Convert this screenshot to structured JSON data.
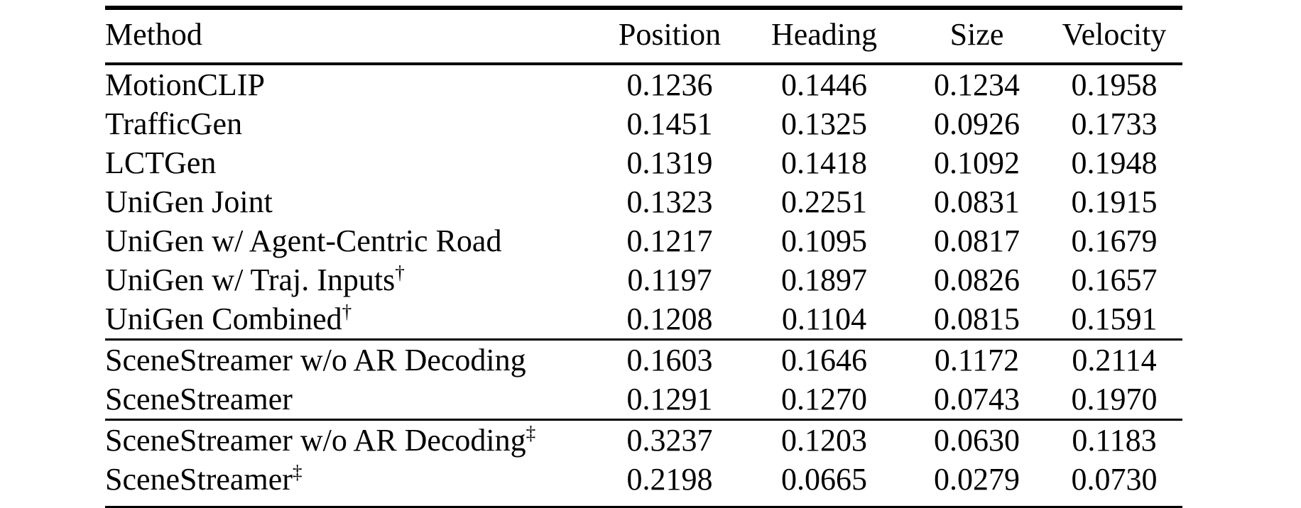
{
  "table": {
    "columns": [
      "Method",
      "Position",
      "Heading",
      "Size",
      "Velocity"
    ],
    "rows": [
      {
        "method": "MotionCLIP",
        "sup": "",
        "values": [
          "0.1236",
          "0.1446",
          "0.1234",
          "0.1958"
        ]
      },
      {
        "method": "TrafficGen",
        "sup": "",
        "values": [
          "0.1451",
          "0.1325",
          "0.0926",
          "0.1733"
        ]
      },
      {
        "method": "LCTGen",
        "sup": "",
        "values": [
          "0.1319",
          "0.1418",
          "0.1092",
          "0.1948"
        ]
      },
      {
        "method": "UniGen Joint",
        "sup": "",
        "values": [
          "0.1323",
          "0.2251",
          "0.0831",
          "0.1915"
        ]
      },
      {
        "method": "UniGen w/ Agent-Centric Road",
        "sup": "",
        "values": [
          "0.1217",
          "0.1095",
          "0.0817",
          "0.1679"
        ]
      },
      {
        "method": "UniGen w/ Traj. Inputs",
        "sup": "†",
        "values": [
          "0.1197",
          "0.1897",
          "0.0826",
          "0.1657"
        ]
      },
      {
        "method": "UniGen Combined",
        "sup": "†",
        "values": [
          "0.1208",
          "0.1104",
          "0.0815",
          "0.1591"
        ]
      },
      {
        "method": "SceneStreamer w/o AR Decoding",
        "sup": "",
        "values": [
          "0.1603",
          "0.1646",
          "0.1172",
          "0.2114"
        ]
      },
      {
        "method": "SceneStreamer",
        "sup": "",
        "values": [
          "0.1291",
          "0.1270",
          "0.0743",
          "0.1970"
        ]
      },
      {
        "method": "SceneStreamer w/o AR Decoding",
        "sup": "‡",
        "values": [
          "0.3237",
          "0.1203",
          "0.0630",
          "0.1183"
        ]
      },
      {
        "method": "SceneStreamer",
        "sup": "‡",
        "values": [
          "0.2198",
          "0.0665",
          "0.0279",
          "0.0730"
        ]
      }
    ]
  },
  "colors": {
    "text": "#000000",
    "background": "#ffffff",
    "rule": "#000000"
  }
}
